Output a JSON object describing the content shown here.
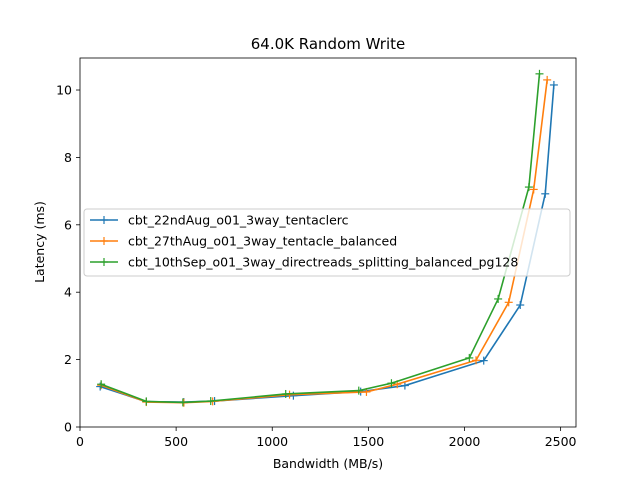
{
  "chart_data": {
    "type": "line",
    "title": "64.0K  Random Write",
    "xlabel": "Bandwidth (MB/s)",
    "ylabel": "Latency (ms)",
    "xlim": [
      0,
      2580
    ],
    "ylim": [
      0,
      10.95
    ],
    "xticks": [
      0,
      500,
      1000,
      1500,
      2000,
      2500
    ],
    "yticks": [
      0,
      2,
      4,
      6,
      8,
      10
    ],
    "grid": false,
    "legend_position": "center-left",
    "marker": "plus",
    "series": [
      {
        "name": "cbt_22ndAug_o01_3way_tentaclerc",
        "color": "#1f77b4",
        "x": [
          105,
          345,
          540,
          700,
          1110,
          1460,
          1690,
          2100,
          2290,
          2420,
          2465
        ],
        "y": [
          1.2,
          0.75,
          0.74,
          0.77,
          0.93,
          1.05,
          1.23,
          1.97,
          3.62,
          6.92,
          10.15
        ]
      },
      {
        "name": "cbt_27thAug_o01_3way_tentacle_balanced",
        "color": "#ff7f0e",
        "x": [
          110,
          345,
          540,
          690,
          1090,
          1490,
          1650,
          2060,
          2230,
          2360,
          2430
        ],
        "y": [
          1.24,
          0.74,
          0.72,
          0.76,
          0.96,
          1.04,
          1.27,
          1.98,
          3.7,
          7.05,
          10.3
        ]
      },
      {
        "name": "cbt_10thSep_o01_3way_directreads_splitting_balanced_pg128",
        "color": "#2ca02c",
        "x": [
          110,
          345,
          535,
          680,
          1070,
          1450,
          1620,
          2025,
          2175,
          2335,
          2390
        ],
        "y": [
          1.27,
          0.76,
          0.73,
          0.77,
          0.98,
          1.08,
          1.3,
          2.05,
          3.8,
          7.12,
          10.48
        ]
      }
    ]
  }
}
